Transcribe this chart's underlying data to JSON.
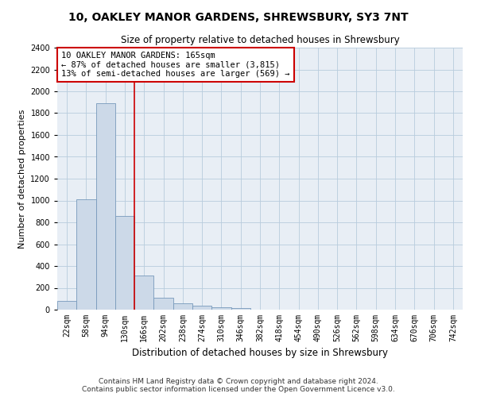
{
  "title": "10, OAKLEY MANOR GARDENS, SHREWSBURY, SY3 7NT",
  "subtitle": "Size of property relative to detached houses in Shrewsbury",
  "xlabel": "Distribution of detached houses by size in Shrewsbury",
  "ylabel": "Number of detached properties",
  "categories": [
    "22sqm",
    "58sqm",
    "94sqm",
    "130sqm",
    "166sqm",
    "202sqm",
    "238sqm",
    "274sqm",
    "310sqm",
    "346sqm",
    "382sqm",
    "418sqm",
    "454sqm",
    "490sqm",
    "526sqm",
    "562sqm",
    "598sqm",
    "634sqm",
    "670sqm",
    "706sqm",
    "742sqm"
  ],
  "bar_values": [
    80,
    1010,
    1890,
    860,
    310,
    110,
    55,
    40,
    25,
    15,
    0,
    0,
    0,
    0,
    0,
    0,
    0,
    0,
    0,
    0,
    0
  ],
  "bar_color": "#ccd9e8",
  "bar_edge_color": "#7799bb",
  "annotation_title": "10 OAKLEY MANOR GARDENS: 165sqm",
  "annotation_line1": "← 87% of detached houses are smaller (3,815)",
  "annotation_line2": "13% of semi-detached houses are larger (569) →",
  "ylim": [
    0,
    2400
  ],
  "yticks": [
    0,
    200,
    400,
    600,
    800,
    1000,
    1200,
    1400,
    1600,
    1800,
    2000,
    2200,
    2400
  ],
  "footer_line1": "Contains HM Land Registry data © Crown copyright and database right 2024.",
  "footer_line2": "Contains public sector information licensed under the Open Government Licence v3.0.",
  "background_color": "#ffffff",
  "plot_bg_color": "#e8eef5",
  "grid_color": "#b8ccdd",
  "annotation_box_color": "#ffffff",
  "annotation_box_edge": "#cc0000",
  "red_line_color": "#cc0000",
  "red_line_x": 3.5,
  "title_fontsize": 10,
  "subtitle_fontsize": 8.5,
  "xlabel_fontsize": 8.5,
  "ylabel_fontsize": 8,
  "tick_fontsize": 7,
  "annotation_fontsize": 7.5,
  "footer_fontsize": 6.5
}
